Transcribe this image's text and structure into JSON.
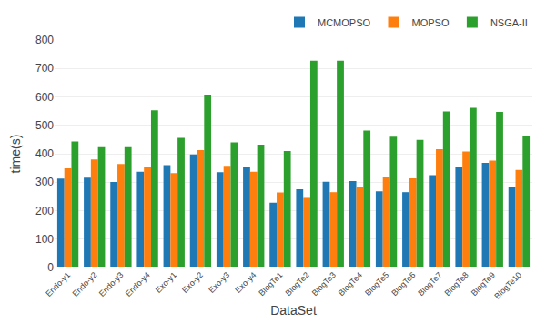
{
  "chart_data": {
    "type": "bar",
    "categories": [
      "Endo-y1",
      "Endo-y2",
      "Endo-y3",
      "Endo-y4",
      "Exo-y1",
      "Exo-y2",
      "Exo-y3",
      "Exo-y4",
      "BlogTe1",
      "BlogTe2",
      "BlogTe3",
      "BlogTe4",
      "BlogTe5",
      "BlogTe6",
      "BlogTe7",
      "BlogTe8",
      "BlogTe9",
      "BlogTe10"
    ],
    "series": [
      {
        "name": "MCMOPSO",
        "values": [
          313,
          316,
          301,
          337,
          360,
          398,
          335,
          353,
          228,
          275,
          302,
          304,
          268,
          265,
          325,
          353,
          368,
          284
        ]
      },
      {
        "name": "MOPSO",
        "values": [
          349,
          380,
          364,
          352,
          332,
          413,
          358,
          337,
          264,
          245,
          265,
          282,
          320,
          314,
          416,
          408,
          376,
          343
        ]
      },
      {
        "name": "NSGA-II",
        "values": [
          443,
          423,
          423,
          553,
          456,
          608,
          440,
          432,
          410,
          727,
          727,
          482,
          460,
          449,
          549,
          562,
          547,
          461
        ]
      }
    ],
    "xlabel": "DataSet",
    "ylabel": "time(s)",
    "ylim": [
      0,
      800
    ],
    "yticks": [
      0,
      100,
      200,
      300,
      400,
      500,
      600,
      700,
      800
    ],
    "grid": true,
    "legend": "upper right"
  }
}
